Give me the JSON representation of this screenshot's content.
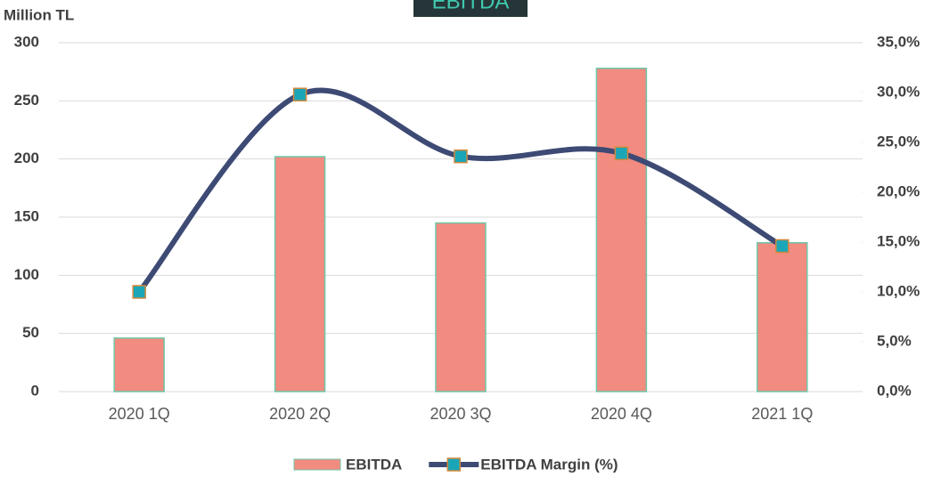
{
  "chart_data": {
    "type": "bar",
    "title": "EBITDA",
    "y_label": "Million TL",
    "categories": [
      "2020 1Q",
      "2020 2Q",
      "2020 3Q",
      "2020 4Q",
      "2021 1Q"
    ],
    "series": [
      {
        "name": "EBITDA",
        "type": "bar",
        "color": "#f28b80",
        "values": [
          46,
          202,
          145,
          278,
          128
        ]
      },
      {
        "name": "EBITDA Margin (%)",
        "type": "line",
        "axis": "y2",
        "color": "#3d4a74",
        "marker_color": "#1ba6b8",
        "values": [
          10.0,
          29.8,
          23.6,
          23.9,
          14.6
        ]
      }
    ],
    "ylim": [
      0,
      300
    ],
    "yticks": [
      0,
      50,
      100,
      150,
      200,
      250,
      300
    ],
    "y2lim": [
      0,
      35
    ],
    "y2ticks": [
      {
        "value": 0,
        "label": "0,0%"
      },
      {
        "value": 5,
        "label": "5,0%"
      },
      {
        "value": 10,
        "label": "10,0%"
      },
      {
        "value": 15,
        "label": "15,0%"
      },
      {
        "value": 20,
        "label": "20,0%"
      },
      {
        "value": 25,
        "label": "25,0%"
      },
      {
        "value": 30,
        "label": "30,0%"
      },
      {
        "value": 35,
        "label": "35,0%"
      }
    ],
    "grid": true,
    "legend": "bottom"
  }
}
